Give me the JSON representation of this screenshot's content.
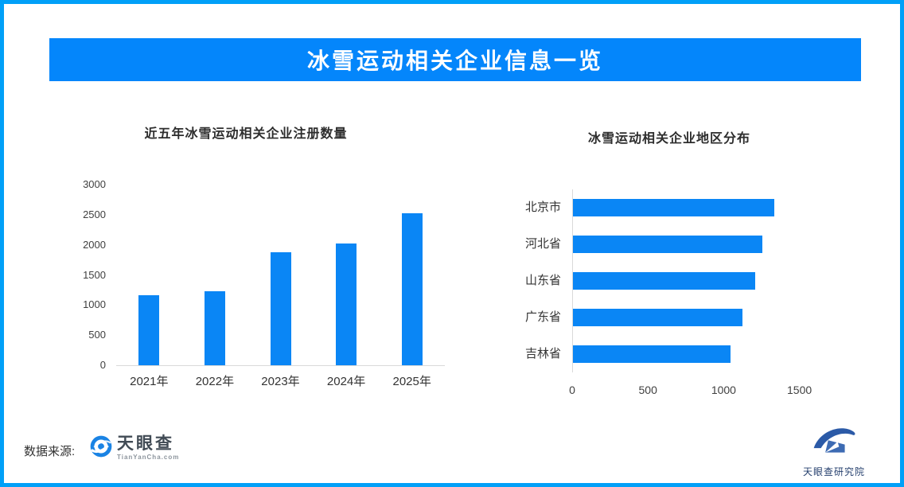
{
  "colors": {
    "frame": "#00A0F8",
    "banner": "#0486FB",
    "bar": "#0A86F5",
    "axis": "#D9D9D9",
    "ticktext": "#404040",
    "tycblue": "#1A83E4",
    "tycdark": "#414B55",
    "tycgray": "#8D959D",
    "instblue": "#2B5AA7",
    "instblue2": "#3D6BB3",
    "instext": "#26406E"
  },
  "header": {
    "title": "冰雪运动相关企业信息一览"
  },
  "footer": {
    "source_label": "数据来源:",
    "tianyancha_logo": {
      "name": "天眼查",
      "domain": "TianYanCha.com"
    },
    "institute_logo": {
      "name": "天眼查研究院"
    }
  },
  "chart_data": [
    {
      "type": "bar",
      "title": "近五年冰雪运动相关企业注册数量",
      "categories": [
        "2021年",
        "2022年",
        "2023年",
        "2024年",
        "2025年"
      ],
      "values": [
        1170,
        1230,
        1880,
        2020,
        2520
      ],
      "xlabel": "",
      "ylabel": "",
      "ylim": [
        0,
        3000
      ],
      "yticks": [
        0,
        500,
        1000,
        1500,
        2000,
        2500,
        3000
      ],
      "grid": false,
      "legend": "none",
      "bar_color": "#0A86F5"
    },
    {
      "type": "bar-horizontal",
      "title": "冰雪运动相关企业地区分布",
      "categories": [
        "北京市",
        "河北省",
        "山东省",
        "广东省",
        "吉林省"
      ],
      "values": [
        1330,
        1250,
        1200,
        1120,
        1040
      ],
      "xlabel": "",
      "ylabel": "",
      "xlim": [
        0,
        1500
      ],
      "xticks": [
        0,
        500,
        1000,
        1500
      ],
      "grid": false,
      "legend": "none",
      "bar_color": "#0A86F5"
    }
  ]
}
